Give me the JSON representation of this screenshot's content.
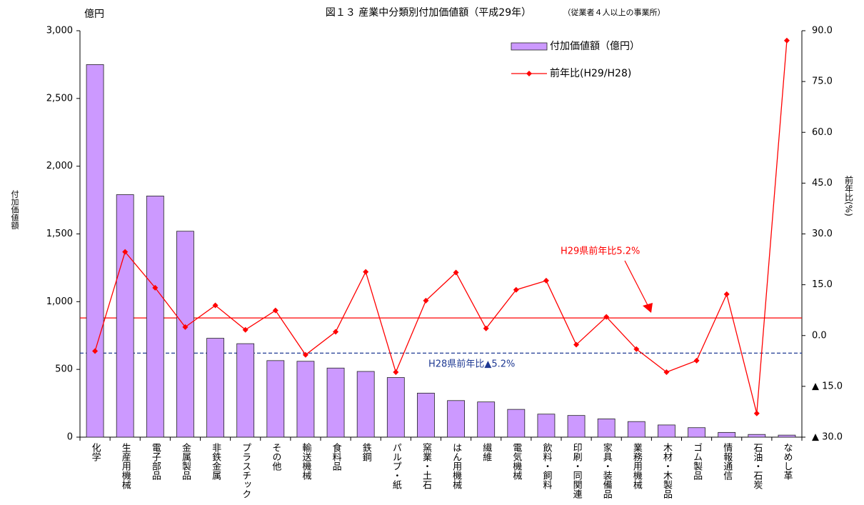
{
  "chart_data": {
    "type": "bar",
    "title": "図１３ 産業中分類別付加価値額（平成29年）",
    "subtitle": "（従業者４人以上の事業所）",
    "y_unit": "億円",
    "y_label": "付加価値額",
    "y2_label": "前年比(%)",
    "categories": [
      "化学",
      "生産用機械",
      "電子部品",
      "金属製品",
      "非鉄金属",
      "プラスチック",
      "その他",
      "輸送機械",
      "食料品",
      "鉄鋼",
      "パルプ・紙",
      "窯業・土石",
      "はん用機械",
      "繊維",
      "電気機械",
      "飲料・飼料",
      "印刷・同関連",
      "家具・装備品",
      "業務用機械",
      "木材・木製品",
      "ゴム製品",
      "情報通信",
      "石油・石炭",
      "なめし革"
    ],
    "series": [
      {
        "name": "付加価値額（億円）",
        "type": "bar",
        "color": "#cc99ff",
        "values": [
          2750,
          1790,
          1780,
          1520,
          730,
          690,
          565,
          560,
          510,
          485,
          440,
          325,
          270,
          260,
          205,
          170,
          160,
          135,
          115,
          90,
          70,
          35,
          20,
          15
        ]
      },
      {
        "name": "前年比(H29/H28)",
        "type": "line",
        "axis": "y2",
        "color": "#ff0000",
        "values": [
          -4.6,
          24.7,
          14.1,
          2.5,
          8.9,
          1.7,
          7.4,
          -5.7,
          1.1,
          18.8,
          -10.8,
          10.3,
          18.6,
          2.1,
          13.5,
          16.2,
          -2.7,
          5.5,
          -4.0,
          -10.8,
          -7.4,
          12.2,
          -23.0,
          87.1
        ]
      }
    ],
    "ylim": [
      0,
      3000
    ],
    "yticks": [
      0,
      500,
      {
        "value": 1000,
        "label": "1,000"
      },
      {
        "value": 1500,
        "label": "1,500"
      },
      {
        "value": 2000,
        "label": "2,000"
      },
      {
        "value": 2500,
        "label": "2,500"
      },
      {
        "value": 3000,
        "label": "3,000"
      }
    ],
    "y2lim": [
      -30,
      90
    ],
    "y2ticks": [
      {
        "value": -30,
        "label": "▲ 30.0"
      },
      {
        "value": -15,
        "label": "▲ 15.0"
      },
      {
        "value": 0,
        "label": "0.0"
      },
      {
        "value": 15,
        "label": "15.0"
      },
      {
        "value": 30,
        "label": "30.0"
      },
      {
        "value": 45,
        "label": "45.0"
      },
      {
        "value": 60,
        "label": "60.0"
      },
      {
        "value": 75,
        "label": "75.0"
      },
      {
        "value": 90,
        "label": "90.0"
      }
    ],
    "reference_lines": [
      {
        "label": "H29県前年比5.2%",
        "value": 5.2,
        "axis": "y2",
        "color": "#ff0000",
        "style": "solid"
      },
      {
        "label": "H28県前年比▲5.2%",
        "value": -5.2,
        "axis": "y2",
        "color": "#1f3a93",
        "style": "dashed"
      }
    ],
    "legend": "upper right"
  }
}
